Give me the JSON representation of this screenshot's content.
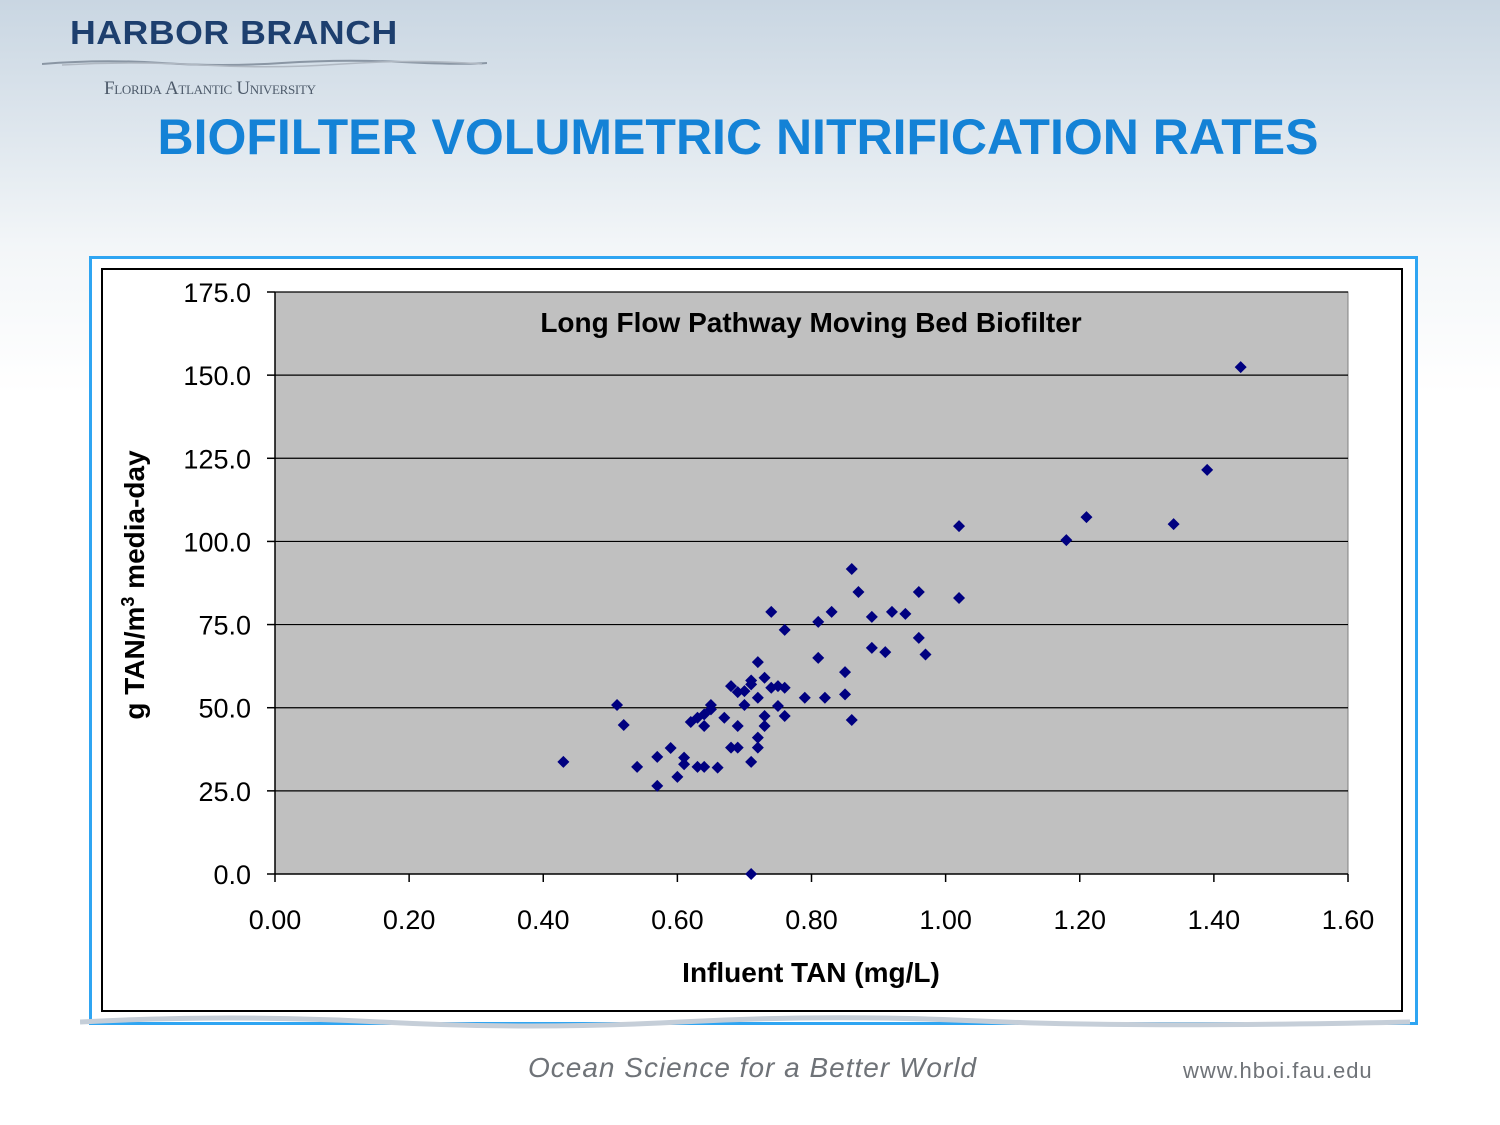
{
  "logo": {
    "main": "HARBOR BRANCH",
    "sub": "Florida Atlantic University"
  },
  "slide_title": "BIOFILTER VOLUMETRIC NITRIFICATION RATES",
  "footer": {
    "slogan": "Ocean Science for a Better World",
    "url": "www.hboi.fau.edu"
  },
  "colors": {
    "title": "#1482d6",
    "plot_background": "#c0c0c0",
    "marker": "#000080",
    "frame": "#2fa5f2"
  },
  "chart_data": {
    "type": "scatter",
    "title": "Long Flow Pathway Moving Bed Biofilter",
    "xlabel": "Influent TAN (mg/L)",
    "ylabel": "g TAN/m³ media-day",
    "xlim": [
      0,
      1.6
    ],
    "ylim": [
      0,
      175
    ],
    "xticks": [
      "0.00",
      "0.20",
      "0.40",
      "0.60",
      "0.80",
      "1.00",
      "1.20",
      "1.40",
      "1.60"
    ],
    "yticks": [
      "0.0",
      "25.0",
      "50.0",
      "75.0",
      "100.0",
      "125.0",
      "150.0",
      "175.0"
    ],
    "grid": "horizontal major",
    "legend": "none",
    "marker": "diamond",
    "points": [
      [
        0.43,
        33.7
      ],
      [
        0.51,
        50.8
      ],
      [
        0.52,
        44.8
      ],
      [
        0.54,
        32.2
      ],
      [
        0.57,
        26.5
      ],
      [
        0.57,
        35.2
      ],
      [
        0.59,
        37.9
      ],
      [
        0.6,
        29.2
      ],
      [
        0.61,
        35.0
      ],
      [
        0.61,
        33.0
      ],
      [
        0.62,
        45.7
      ],
      [
        0.63,
        32.2
      ],
      [
        0.64,
        32.2
      ],
      [
        0.66,
        32.0
      ],
      [
        0.64,
        44.5
      ],
      [
        0.64,
        48.0
      ],
      [
        0.65,
        49.5
      ],
      [
        0.65,
        50.8
      ],
      [
        0.63,
        47.0
      ],
      [
        0.67,
        47.0
      ],
      [
        0.68,
        56.5
      ],
      [
        0.68,
        38.0
      ],
      [
        0.69,
        38.0
      ],
      [
        0.69,
        44.5
      ],
      [
        0.69,
        54.7
      ],
      [
        0.7,
        50.8
      ],
      [
        0.7,
        55.0
      ],
      [
        0.71,
        57.0
      ],
      [
        0.71,
        58.2
      ],
      [
        0.72,
        63.7
      ],
      [
        0.72,
        53.0
      ],
      [
        0.72,
        41.0
      ],
      [
        0.72,
        38.0
      ],
      [
        0.71,
        33.7
      ],
      [
        0.71,
        0.0
      ],
      [
        0.73,
        59.0
      ],
      [
        0.73,
        47.5
      ],
      [
        0.73,
        44.5
      ],
      [
        0.74,
        56.0
      ],
      [
        0.75,
        56.5
      ],
      [
        0.76,
        56.0
      ],
      [
        0.75,
        50.5
      ],
      [
        0.76,
        47.5
      ],
      [
        0.74,
        78.8
      ],
      [
        0.76,
        73.4
      ],
      [
        0.79,
        53.0
      ],
      [
        0.81,
        75.8
      ],
      [
        0.81,
        65.0
      ],
      [
        0.82,
        53.0
      ],
      [
        0.83,
        78.8
      ],
      [
        0.85,
        60.7
      ],
      [
        0.85,
        54.0
      ],
      [
        0.86,
        46.3
      ],
      [
        0.86,
        91.7
      ],
      [
        0.87,
        84.8
      ],
      [
        0.89,
        77.3
      ],
      [
        0.89,
        68.0
      ],
      [
        0.91,
        66.7
      ],
      [
        0.92,
        78.8
      ],
      [
        0.94,
        78.2
      ],
      [
        0.96,
        84.8
      ],
      [
        0.96,
        71.0
      ],
      [
        0.97,
        66.0
      ],
      [
        1.02,
        104.6
      ],
      [
        1.02,
        83.0
      ],
      [
        1.18,
        100.4
      ],
      [
        1.21,
        107.3
      ],
      [
        1.34,
        105.2
      ],
      [
        1.39,
        121.5
      ],
      [
        1.44,
        152.4
      ]
    ]
  }
}
